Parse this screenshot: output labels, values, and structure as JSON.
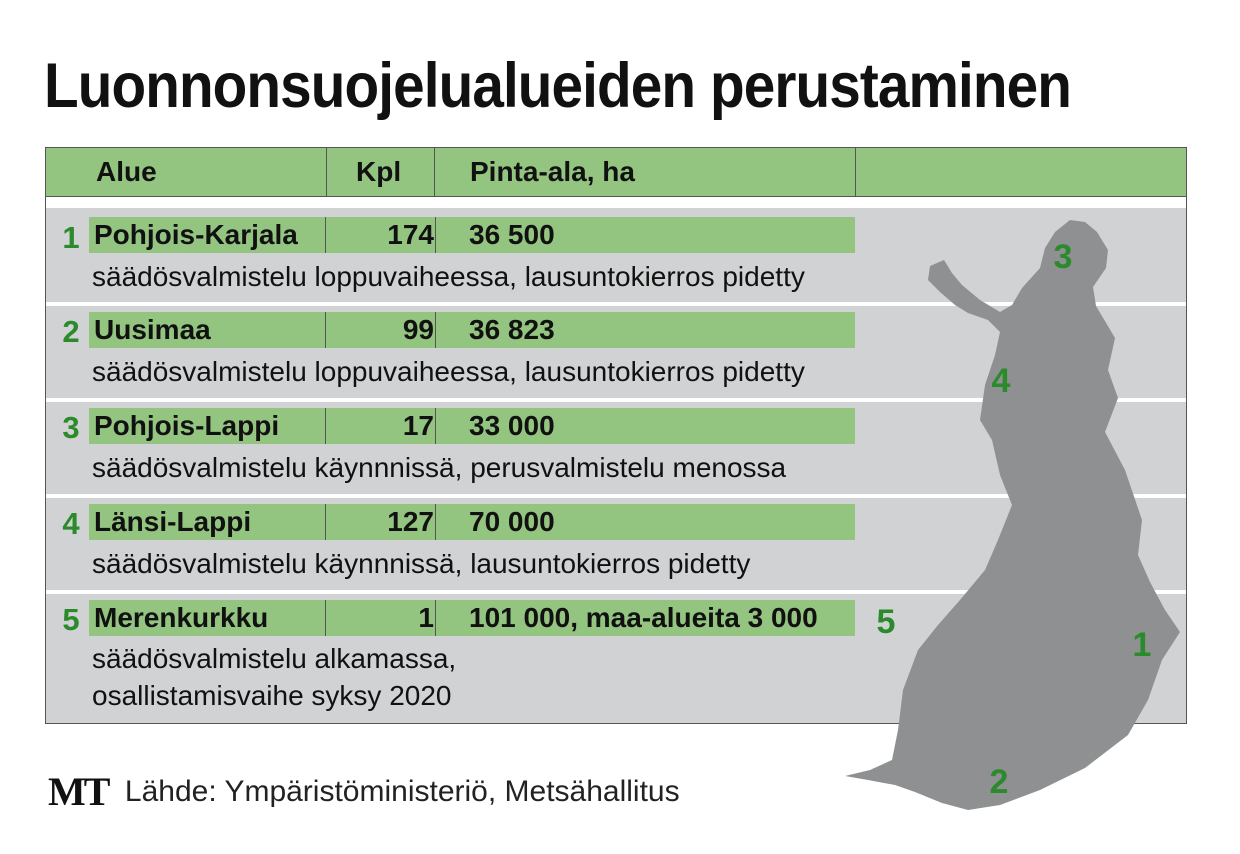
{
  "title": "Luonnonsuojelualueiden perustaminen",
  "table": {
    "headers": {
      "area": "Alue",
      "count": "Kpl",
      "size": "Pinta-ala, ha",
      "extra": ""
    },
    "rows": [
      {
        "num": "1",
        "name": "Pohjois-Karjala",
        "count": "174",
        "area": "36 500",
        "status": [
          "säädösvalmistelu loppuvaiheessa, lausuntokierros pidetty"
        ]
      },
      {
        "num": "2",
        "name": "Uusimaa",
        "count": "99",
        "area": "36 823",
        "status": [
          "säädösvalmistelu loppuvaiheessa, lausuntokierros pidetty"
        ]
      },
      {
        "num": "3",
        "name": "Pohjois-Lappi",
        "count": "17",
        "area": "33 000",
        "status": [
          "säädösvalmistelu käynnnissä, perusvalmistelu menossa"
        ]
      },
      {
        "num": "4",
        "name": "Länsi-Lappi",
        "count": "127",
        "area": "70 000",
        "status": [
          "säädösvalmistelu käynnnissä, lausuntokierros pidetty"
        ]
      },
      {
        "num": "5",
        "name": "Merenkurkku",
        "count": "1",
        "area": "101 000, maa-alueita 3 000",
        "status": [
          "säädösvalmistelu alkamassa,",
          "osallistamisvaihe syksy 2020"
        ]
      }
    ]
  },
  "map": {
    "labels": [
      "3",
      "4",
      "5",
      "1",
      "2"
    ],
    "colors": {
      "land": "#8e9091",
      "label": "#2b8a2b"
    }
  },
  "footer": {
    "logo": "MT",
    "source": "Lähde: Ympäristöministeriö, Metsähallitus"
  },
  "colors": {
    "header_green": "#93c480",
    "band_gray": "#d0d2d3",
    "number_green": "#2b8a2b"
  }
}
